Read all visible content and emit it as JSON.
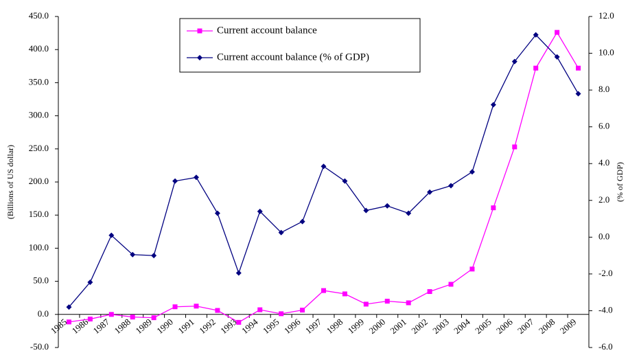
{
  "chart_data": {
    "type": "line",
    "y_label": "(Billions of US dollar)",
    "y2_label": "(% of GDP)",
    "categories": [
      "1985",
      "1986",
      "1987",
      "1988",
      "1989",
      "1990",
      "1991",
      "1992",
      "1993",
      "1994",
      "1995",
      "1996",
      "1997",
      "1998",
      "1999",
      "2000",
      "2001",
      "2002",
      "2003",
      "2004",
      "2005",
      "2006",
      "2007",
      "2008",
      "2009"
    ],
    "ylim": [
      -50,
      450
    ],
    "yticks": [
      {
        "value": -50,
        "label": "-50.0"
      },
      {
        "value": 0,
        "label": "0.0"
      },
      {
        "value": 50,
        "label": "50.0"
      },
      {
        "value": 100,
        "label": "100.0"
      },
      {
        "value": 150,
        "label": "150.0"
      },
      {
        "value": 200,
        "label": "200.0"
      },
      {
        "value": 250,
        "label": "250.0"
      },
      {
        "value": 300,
        "label": "300.0"
      },
      {
        "value": 350,
        "label": "350.0"
      },
      {
        "value": 400,
        "label": "400.0"
      },
      {
        "value": 450,
        "label": "450.0"
      }
    ],
    "y2lim": [
      -6,
      12
    ],
    "y2ticks": [
      {
        "value": -6,
        "label": "-6.0"
      },
      {
        "value": -4,
        "label": "-4.0"
      },
      {
        "value": -2,
        "label": "-2.0"
      },
      {
        "value": 0,
        "label": "0.0"
      },
      {
        "value": 2,
        "label": "2.0"
      },
      {
        "value": 4,
        "label": "4.0"
      },
      {
        "value": 6,
        "label": "6.0"
      },
      {
        "value": 8,
        "label": "8.0"
      },
      {
        "value": 10,
        "label": "10.0"
      },
      {
        "value": 12,
        "label": "12.0"
      }
    ],
    "legend": "upper center",
    "series": [
      {
        "name": "Current account balance",
        "color": "#ff00ff",
        "marker": "square",
        "values": [
          -11.4,
          -7,
          0,
          -4,
          -5,
          11.5,
          12.5,
          6,
          -12,
          7,
          1,
          6.5,
          36,
          31,
          15.5,
          20,
          17.5,
          34.5,
          45.5,
          68.5,
          161,
          253,
          372,
          426,
          372
        ]
      },
      {
        "name": "Current account balance (% of GDP)",
        "color": "#000080",
        "marker": "diamond",
        "axis": "y2",
        "values": [
          -3.8,
          -2.45,
          0.1,
          -0.95,
          -1.0,
          3.05,
          3.25,
          1.3,
          -1.95,
          1.4,
          0.25,
          0.85,
          3.85,
          3.05,
          1.45,
          1.7,
          1.3,
          2.45,
          2.8,
          3.55,
          7.2,
          9.55,
          11.0,
          9.8,
          7.8
        ]
      }
    ]
  }
}
